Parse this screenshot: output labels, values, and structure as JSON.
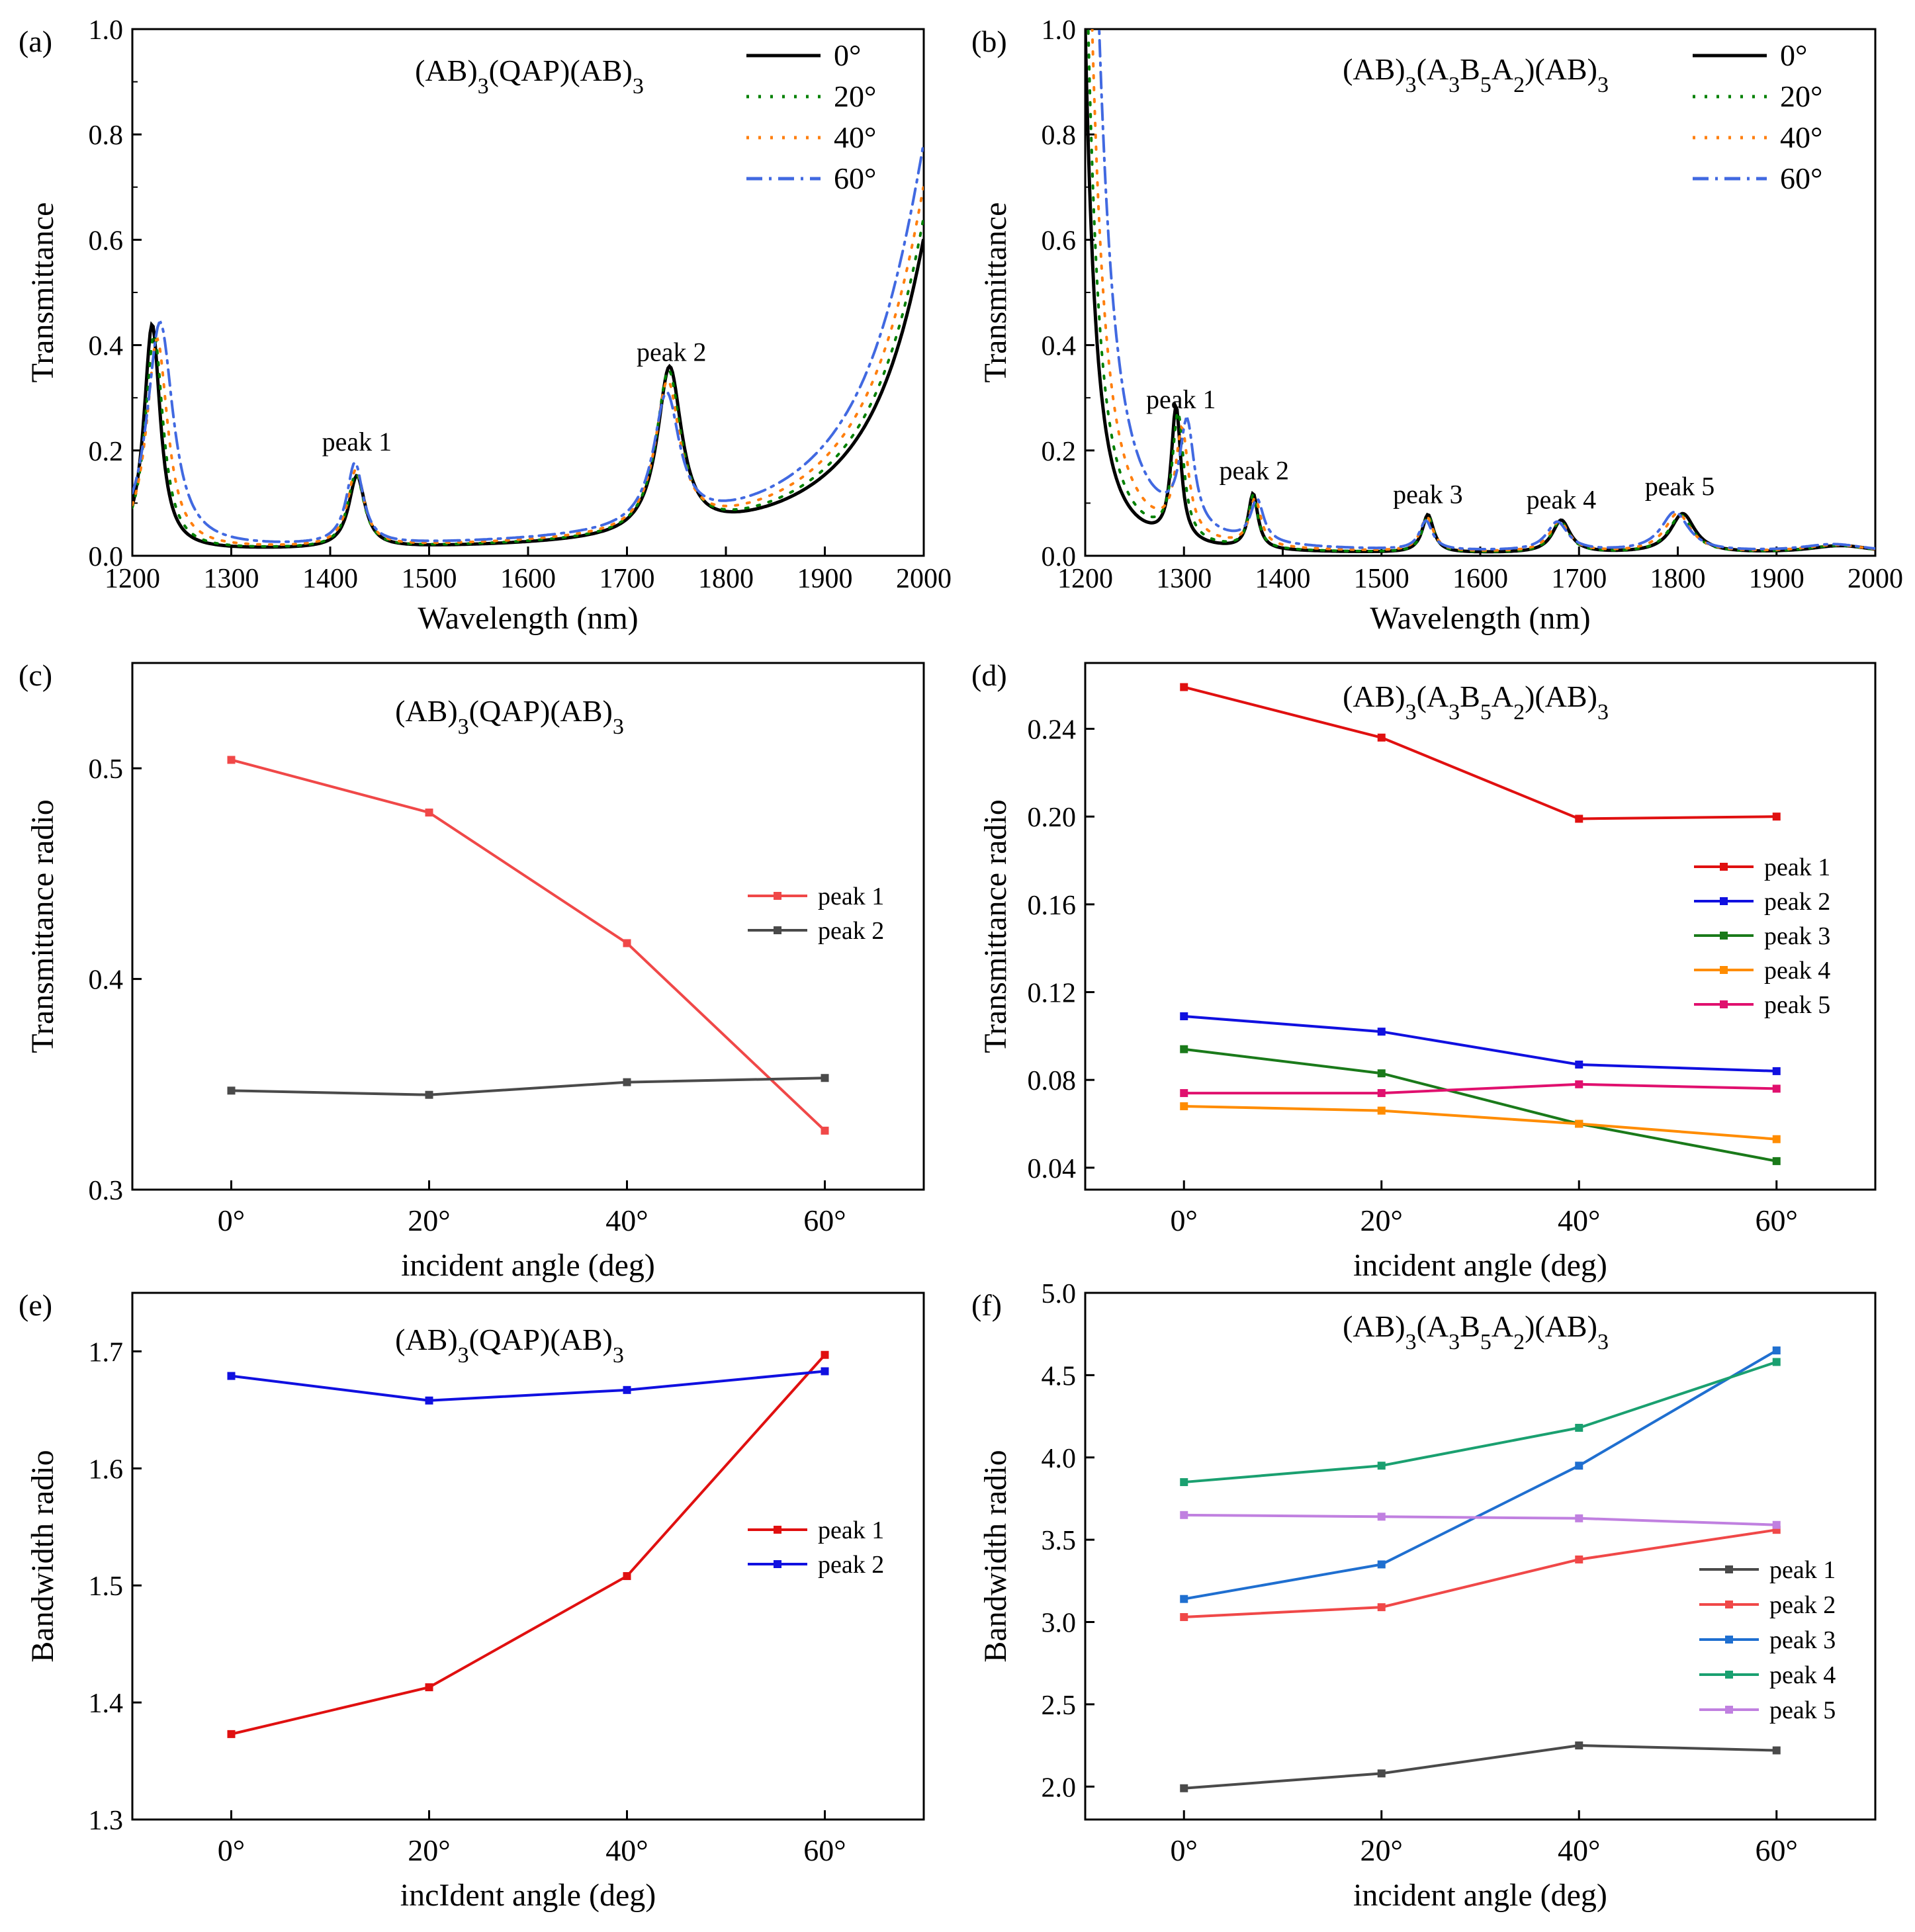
{
  "chart_data": [
    {
      "id": "a",
      "type": "line",
      "panel_label": "(a)",
      "title_parts": [
        [
          "(AB)",
          ""
        ],
        [
          "3",
          "sub"
        ],
        [
          "(QAP)(AB)",
          ""
        ],
        [
          "3",
          "sub"
        ]
      ],
      "xlabel": "Wavelength (nm)",
      "ylabel": "Transmittance",
      "xlim": [
        1200,
        2000
      ],
      "ylim": [
        0.0,
        1.0
      ],
      "xticks": [
        1200,
        1300,
        1400,
        1500,
        1600,
        1700,
        1800,
        1900,
        2000
      ],
      "yticks": [
        "0.0",
        "0.2",
        "0.4",
        "0.6",
        "0.8",
        "1.0"
      ],
      "grid": false,
      "legend_position": "top-right",
      "series": [
        {
          "name": "0°",
          "color": "#000000",
          "dash": "solid",
          "base": 0.003,
          "edge": {
            "left": 0.26,
            "right": 0.34
          },
          "peaks": [
            {
              "x": 1220,
              "h": 0.43,
              "w": 10
            },
            {
              "x": 1427,
              "h": 0.137,
              "w": 10
            },
            {
              "x": 1743,
              "h": 0.315,
              "w": 15
            },
            {
              "x": 2060,
              "h": 1.2,
              "w": 60
            }
          ]
        },
        {
          "name": "20°",
          "color": "#008000",
          "dash": "dot",
          "base": 0.003,
          "edge": {
            "left": 0.27,
            "right": 0.345
          },
          "peaks": [
            {
              "x": 1222,
              "h": 0.41,
              "w": 11
            },
            {
              "x": 1426,
              "h": 0.14,
              "w": 10
            },
            {
              "x": 1742,
              "h": 0.305,
              "w": 15
            },
            {
              "x": 2058,
              "h": 1.2,
              "w": 62
            }
          ]
        },
        {
          "name": "40°",
          "color": "#ff7f0e",
          "dash": "dot",
          "base": 0.004,
          "edge": {
            "left": 0.29,
            "right": 0.35
          },
          "peaks": [
            {
              "x": 1225,
              "h": 0.4,
              "w": 13
            },
            {
              "x": 1426,
              "h": 0.145,
              "w": 10
            },
            {
              "x": 1741,
              "h": 0.28,
              "w": 15
            },
            {
              "x": 2055,
              "h": 1.2,
              "w": 65
            }
          ]
        },
        {
          "name": "60°",
          "color": "#4169e1",
          "dash": "dashdot",
          "base": 0.005,
          "edge": {
            "left": 0.49,
            "right": 0.36
          },
          "peaks": [
            {
              "x": 1228,
              "h": 0.43,
              "w": 16
            },
            {
              "x": 1425,
              "h": 0.155,
              "w": 10
            },
            {
              "x": 1740,
              "h": 0.25,
              "w": 16
            },
            {
              "x": 2050,
              "h": 1.2,
              "w": 68
            }
          ]
        }
      ],
      "annotations": [
        {
          "text": "peak 1",
          "x": 1427,
          "y": 0.2
        },
        {
          "text": "peak 2",
          "x": 1745,
          "y": 0.37
        }
      ]
    },
    {
      "id": "b",
      "type": "line",
      "panel_label": "(b)",
      "title_parts": [
        [
          "(AB)",
          ""
        ],
        [
          "3",
          "sub"
        ],
        [
          "(A",
          ""
        ],
        [
          "3",
          "sub"
        ],
        [
          "B",
          ""
        ],
        [
          "5",
          "sub"
        ],
        [
          "A",
          ""
        ],
        [
          "2",
          "sub"
        ],
        [
          ")(AB)",
          ""
        ],
        [
          "3",
          "sub"
        ]
      ],
      "xlabel": "Wavelength (nm)",
      "ylabel": "Transmittance",
      "xlim": [
        1200,
        2000
      ],
      "ylim": [
        0.0,
        1.0
      ],
      "xticks": [
        1200,
        1300,
        1400,
        1500,
        1600,
        1700,
        1800,
        1900,
        2000
      ],
      "yticks": [
        "0.0",
        "0.2",
        "0.4",
        "0.6",
        "0.8",
        "1.0"
      ],
      "grid": false,
      "legend_position": "top-right",
      "series": [
        {
          "name": "0°",
          "color": "#000000",
          "dash": "solid",
          "base": 0.003,
          "edge": {
            "left": 0.6,
            "right": 0.01
          },
          "peaks": [
            {
              "x": 1188,
              "h": 2.0,
              "w": 12
            },
            {
              "x": 1292,
              "h": 0.255,
              "w": 6
            },
            {
              "x": 1370,
              "h": 0.105,
              "w": 6
            },
            {
              "x": 1547,
              "h": 0.072,
              "w": 7
            },
            {
              "x": 1682,
              "h": 0.062,
              "w": 11
            },
            {
              "x": 1805,
              "h": 0.075,
              "w": 15
            },
            {
              "x": 1965,
              "h": 0.015,
              "w": 40
            }
          ]
        },
        {
          "name": "20°",
          "color": "#008000",
          "dash": "dot",
          "base": 0.003,
          "edge": {
            "left": 0.57,
            "right": 0.01
          },
          "peaks": [
            {
              "x": 1190,
              "h": 2.0,
              "w": 13
            },
            {
              "x": 1294,
              "h": 0.24,
              "w": 7
            },
            {
              "x": 1370,
              "h": 0.1,
              "w": 6
            },
            {
              "x": 1547,
              "h": 0.07,
              "w": 7
            },
            {
              "x": 1681,
              "h": 0.06,
              "w": 11
            },
            {
              "x": 1803,
              "h": 0.072,
              "w": 15
            },
            {
              "x": 1963,
              "h": 0.015,
              "w": 40
            }
          ]
        },
        {
          "name": "40°",
          "color": "#ff7f0e",
          "dash": "dot",
          "base": 0.004,
          "edge": {
            "left": 0.52,
            "right": 0.01
          },
          "peaks": [
            {
              "x": 1192,
              "h": 2.0,
              "w": 15
            },
            {
              "x": 1298,
              "h": 0.2,
              "w": 8
            },
            {
              "x": 1372,
              "h": 0.09,
              "w": 7
            },
            {
              "x": 1546,
              "h": 0.065,
              "w": 8
            },
            {
              "x": 1680,
              "h": 0.058,
              "w": 12
            },
            {
              "x": 1800,
              "h": 0.074,
              "w": 16
            },
            {
              "x": 1960,
              "h": 0.015,
              "w": 40
            }
          ]
        },
        {
          "name": "60°",
          "color": "#4169e1",
          "dash": "dashdot",
          "base": 0.005,
          "edge": {
            "left": 0.45,
            "right": 0.01
          },
          "peaks": [
            {
              "x": 1196,
              "h": 2.0,
              "w": 18
            },
            {
              "x": 1303,
              "h": 0.2,
              "w": 9
            },
            {
              "x": 1374,
              "h": 0.08,
              "w": 8
            },
            {
              "x": 1545,
              "h": 0.055,
              "w": 8
            },
            {
              "x": 1678,
              "h": 0.055,
              "w": 13
            },
            {
              "x": 1797,
              "h": 0.075,
              "w": 17
            },
            {
              "x": 1958,
              "h": 0.015,
              "w": 40
            }
          ]
        }
      ],
      "annotations": [
        {
          "text": "peak 1",
          "x": 1297,
          "y": 0.28
        },
        {
          "text": "peak 2",
          "x": 1371,
          "y": 0.145
        },
        {
          "text": "peak 3",
          "x": 1547,
          "y": 0.1
        },
        {
          "text": "peak 4",
          "x": 1682,
          "y": 0.09
        },
        {
          "text": "peak 5",
          "x": 1802,
          "y": 0.115
        }
      ]
    },
    {
      "id": "c",
      "type": "line",
      "panel_label": "(c)",
      "title_parts": [
        [
          "(AB)",
          ""
        ],
        [
          "3",
          "sub"
        ],
        [
          "(QAP)(AB)",
          ""
        ],
        [
          "3",
          "sub"
        ]
      ],
      "xlabel": "incident angle (deg)",
      "ylabel": "Transmittance radio",
      "categories": [
        "0°",
        "20°",
        "40°",
        "60°"
      ],
      "xlim": [
        -0.5,
        3.5
      ],
      "ylim": [
        0.3,
        0.55
      ],
      "yticks": [
        "0.3",
        "0.4",
        "0.5"
      ],
      "grid": false,
      "legend_position": "center-right",
      "series": [
        {
          "name": "peak 1",
          "color": "#f04848",
          "values": [
            0.504,
            0.479,
            0.417,
            0.328
          ]
        },
        {
          "name": "peak 2",
          "color": "#4a4a4a",
          "values": [
            0.347,
            0.345,
            0.351,
            0.353
          ]
        }
      ]
    },
    {
      "id": "d",
      "type": "line",
      "panel_label": "(d)",
      "title_parts": [
        [
          "(AB)",
          ""
        ],
        [
          "3",
          "sub"
        ],
        [
          "(A",
          ""
        ],
        [
          "3",
          "sub"
        ],
        [
          "B",
          ""
        ],
        [
          "5",
          "sub"
        ],
        [
          "A",
          ""
        ],
        [
          "2",
          "sub"
        ],
        [
          ")(AB)",
          ""
        ],
        [
          "3",
          "sub"
        ]
      ],
      "xlabel": "incident angle (deg)",
      "ylabel": "Transmittance radio",
      "categories": [
        "0°",
        "20°",
        "40°",
        "60°"
      ],
      "xlim": [
        -0.5,
        3.5
      ],
      "ylim": [
        0.03,
        0.27
      ],
      "yticks": [
        "0.04",
        "0.08",
        "0.12",
        "0.16",
        "0.20",
        "0.24"
      ],
      "grid": false,
      "legend_position": "center-right",
      "series": [
        {
          "name": "peak 1",
          "color": "#e01010",
          "values": [
            0.259,
            0.236,
            0.199,
            0.2
          ]
        },
        {
          "name": "peak 2",
          "color": "#1010e0",
          "values": [
            0.109,
            0.102,
            0.087,
            0.084
          ]
        },
        {
          "name": "peak 3",
          "color": "#1a7a1a",
          "values": [
            0.094,
            0.083,
            0.06,
            0.043
          ]
        },
        {
          "name": "peak 4",
          "color": "#ff8c00",
          "values": [
            0.068,
            0.066,
            0.06,
            0.053
          ]
        },
        {
          "name": "peak 5",
          "color": "#e0106e",
          "values": [
            0.074,
            0.074,
            0.078,
            0.076
          ]
        }
      ]
    },
    {
      "id": "e",
      "type": "line",
      "panel_label": "(e)",
      "title_parts": [
        [
          "(AB)",
          ""
        ],
        [
          "3",
          "sub"
        ],
        [
          "(QAP)(AB)",
          ""
        ],
        [
          "3",
          "sub"
        ]
      ],
      "xlabel": "incIdent angle (deg)",
      "ylabel": "Bandwidth radio",
      "categories": [
        "0°",
        "20°",
        "40°",
        "60°"
      ],
      "xlim": [
        -0.5,
        3.5
      ],
      "ylim": [
        1.3,
        1.75
      ],
      "yticks": [
        "1.3",
        "1.4",
        "1.5",
        "1.6",
        "1.7"
      ],
      "grid": false,
      "legend_position": "center-right",
      "series": [
        {
          "name": "peak 1",
          "color": "#e01010",
          "values": [
            1.373,
            1.413,
            1.508,
            1.697
          ]
        },
        {
          "name": "peak 2",
          "color": "#1010e0",
          "values": [
            1.679,
            1.658,
            1.667,
            1.683
          ]
        }
      ]
    },
    {
      "id": "f",
      "type": "line",
      "panel_label": "(f)",
      "title_parts": [
        [
          "(AB)",
          ""
        ],
        [
          "3",
          "sub"
        ],
        [
          "(A",
          ""
        ],
        [
          "3",
          "sub"
        ],
        [
          "B",
          ""
        ],
        [
          "5",
          "sub"
        ],
        [
          "A",
          ""
        ],
        [
          "2",
          "sub"
        ],
        [
          ")(AB)",
          ""
        ],
        [
          "3",
          "sub"
        ]
      ],
      "xlabel": "incident angle (deg)",
      "ylabel": "Bandwidth radio",
      "categories": [
        "0°",
        "20°",
        "40°",
        "60°"
      ],
      "xlim": [
        -0.5,
        3.5
      ],
      "ylim": [
        1.8,
        5.0
      ],
      "yticks": [
        "2.0",
        "2.5",
        "3.0",
        "3.5",
        "4.0",
        "4.5",
        "5.0"
      ],
      "grid": false,
      "legend_position": "bottom-right",
      "series": [
        {
          "name": "peak 1",
          "color": "#4a4a4a",
          "values": [
            1.99,
            2.08,
            2.25,
            2.22
          ]
        },
        {
          "name": "peak 2",
          "color": "#f04848",
          "values": [
            3.03,
            3.09,
            3.38,
            3.56
          ]
        },
        {
          "name": "peak 3",
          "color": "#1f6fd0",
          "values": [
            3.14,
            3.35,
            3.95,
            4.65
          ]
        },
        {
          "name": "peak 4",
          "color": "#1aa070",
          "values": [
            3.85,
            3.95,
            4.18,
            4.58
          ]
        },
        {
          "name": "peak 5",
          "color": "#c080e0",
          "values": [
            3.65,
            3.64,
            3.63,
            3.59
          ]
        }
      ]
    }
  ]
}
